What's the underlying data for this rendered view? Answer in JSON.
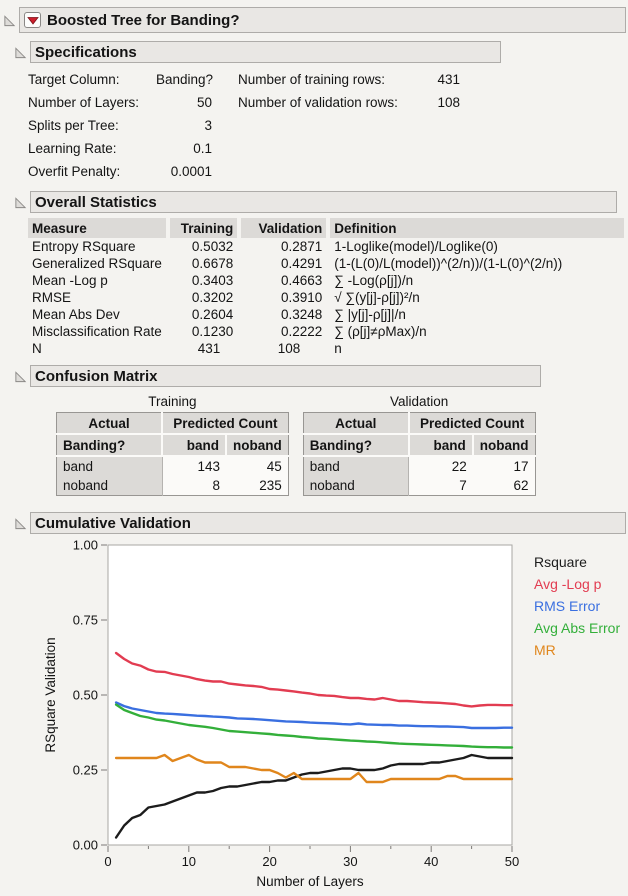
{
  "window": {
    "title": "Boosted Tree for Banding?"
  },
  "specifications": {
    "title": "Specifications",
    "left_rows": [
      {
        "label": "Target Column:",
        "value": "Banding?"
      },
      {
        "label": "Number of Layers:",
        "value": "50"
      },
      {
        "label": "Splits per Tree:",
        "value": "3"
      },
      {
        "label": "Learning Rate:",
        "value": "0.1"
      },
      {
        "label": "Overfit Penalty:",
        "value": "0.0001"
      }
    ],
    "right_rows": [
      {
        "label": "Number of training rows:",
        "value": "431"
      },
      {
        "label": "Number of validation rows:",
        "value": "108"
      }
    ]
  },
  "overall_statistics": {
    "title": "Overall Statistics",
    "columns": [
      "Measure",
      "Training",
      "Validation",
      "Definition"
    ],
    "rows": [
      [
        "Entropy RSquare",
        "0.5032",
        "0.2871",
        "1-Loglike(model)/Loglike(0)"
      ],
      [
        "Generalized RSquare",
        "0.6678",
        "0.4291",
        "(1-(L(0)/L(model))^(2/n))/(1-L(0)^(2/n))"
      ],
      [
        "Mean -Log p",
        "0.3403",
        "0.4663",
        "∑ -Log(ρ[j])/n"
      ],
      [
        "RMSE",
        "0.3202",
        "0.3910",
        "√ ∑(y[j]-ρ[j])²/n"
      ],
      [
        "Mean Abs Dev",
        "0.2604",
        "0.3248",
        "∑ |y[j]-ρ[j]|/n"
      ],
      [
        "Misclassification Rate",
        "0.1230",
        "0.2222",
        "∑ (ρ[j]≠ρMax)/n"
      ],
      [
        "N",
        "431",
        "108",
        "n"
      ]
    ]
  },
  "confusion_matrix": {
    "title": "Confusion Matrix",
    "tables": [
      {
        "caption": "Training",
        "actual_header": "Actual",
        "predicted_header": "Predicted Count",
        "row_header": "Banding?",
        "col_labels": [
          "band",
          "noband"
        ],
        "rows": [
          {
            "label": "band",
            "values": [
              "143",
              "45"
            ]
          },
          {
            "label": "noband",
            "values": [
              "8",
              "235"
            ]
          }
        ]
      },
      {
        "caption": "Validation",
        "actual_header": "Actual",
        "predicted_header": "Predicted Count",
        "row_header": "Banding?",
        "col_labels": [
          "band",
          "noband"
        ],
        "rows": [
          {
            "label": "band",
            "values": [
              "22",
              "17"
            ]
          },
          {
            "label": "noband",
            "values": [
              "7",
              "62"
            ]
          }
        ]
      }
    ]
  },
  "cumulative_validation": {
    "title": "Cumulative Validation"
  },
  "chart_data": {
    "type": "line",
    "title": "Cumulative Validation",
    "xlabel": "Number of Layers",
    "ylabel": "RSquare Validation",
    "xlim": [
      0,
      50
    ],
    "ylim": [
      0,
      1
    ],
    "xticks": [
      0,
      10,
      20,
      30,
      40,
      50
    ],
    "xticks_minor": [
      5,
      15,
      25,
      35,
      45
    ],
    "yticks": [
      0,
      0.25,
      0.5,
      0.75,
      1
    ],
    "ytick_labels": [
      "0.00",
      "0.25",
      "0.50",
      "0.75",
      "1.00"
    ],
    "grid": false,
    "legend_position": "right",
    "x": [
      1,
      2,
      3,
      4,
      5,
      6,
      7,
      8,
      9,
      10,
      11,
      12,
      13,
      14,
      15,
      16,
      17,
      18,
      19,
      20,
      21,
      22,
      23,
      24,
      25,
      26,
      27,
      28,
      29,
      30,
      31,
      32,
      33,
      34,
      35,
      36,
      37,
      38,
      39,
      40,
      41,
      42,
      43,
      44,
      45,
      46,
      47,
      48,
      49,
      50
    ],
    "series": [
      {
        "name": "Rsquare",
        "color": "#1c1c1c",
        "values": [
          0.025,
          0.065,
          0.09,
          0.1,
          0.125,
          0.13,
          0.135,
          0.145,
          0.155,
          0.165,
          0.175,
          0.175,
          0.18,
          0.19,
          0.195,
          0.195,
          0.2,
          0.205,
          0.21,
          0.21,
          0.215,
          0.215,
          0.225,
          0.235,
          0.24,
          0.24,
          0.245,
          0.25,
          0.255,
          0.255,
          0.25,
          0.25,
          0.25,
          0.255,
          0.265,
          0.27,
          0.27,
          0.27,
          0.27,
          0.275,
          0.275,
          0.28,
          0.285,
          0.29,
          0.3,
          0.295,
          0.29,
          0.29,
          0.29,
          0.29
        ]
      },
      {
        "name": "Avg -Log p",
        "color": "#e23c51",
        "values": [
          0.64,
          0.62,
          0.605,
          0.598,
          0.585,
          0.578,
          0.577,
          0.57,
          0.565,
          0.56,
          0.553,
          0.548,
          0.545,
          0.545,
          0.538,
          0.535,
          0.532,
          0.53,
          0.527,
          0.52,
          0.518,
          0.515,
          0.512,
          0.508,
          0.505,
          0.5,
          0.498,
          0.497,
          0.493,
          0.49,
          0.49,
          0.487,
          0.485,
          0.49,
          0.485,
          0.48,
          0.48,
          0.478,
          0.476,
          0.475,
          0.474,
          0.472,
          0.47,
          0.465,
          0.462,
          0.465,
          0.467,
          0.467,
          0.466,
          0.466
        ]
      },
      {
        "name": "RMS Error",
        "color": "#3a6fe0",
        "values": [
          0.475,
          0.463,
          0.455,
          0.45,
          0.445,
          0.44,
          0.438,
          0.437,
          0.435,
          0.433,
          0.431,
          0.43,
          0.428,
          0.427,
          0.425,
          0.422,
          0.421,
          0.42,
          0.418,
          0.416,
          0.414,
          0.412,
          0.411,
          0.41,
          0.408,
          0.407,
          0.406,
          0.405,
          0.403,
          0.402,
          0.405,
          0.402,
          0.401,
          0.4,
          0.4,
          0.398,
          0.398,
          0.397,
          0.396,
          0.396,
          0.395,
          0.395,
          0.394,
          0.393,
          0.39,
          0.39,
          0.39,
          0.39,
          0.391,
          0.391
        ]
      },
      {
        "name": "Avg Abs Error",
        "color": "#33af3a",
        "values": [
          0.468,
          0.45,
          0.44,
          0.43,
          0.425,
          0.418,
          0.415,
          0.41,
          0.405,
          0.4,
          0.397,
          0.394,
          0.39,
          0.385,
          0.38,
          0.378,
          0.376,
          0.374,
          0.372,
          0.37,
          0.367,
          0.365,
          0.363,
          0.36,
          0.358,
          0.355,
          0.354,
          0.352,
          0.35,
          0.348,
          0.347,
          0.345,
          0.344,
          0.342,
          0.34,
          0.338,
          0.337,
          0.336,
          0.335,
          0.334,
          0.333,
          0.332,
          0.331,
          0.33,
          0.328,
          0.327,
          0.326,
          0.326,
          0.325,
          0.325
        ]
      },
      {
        "name": "MR",
        "color": "#e0861c",
        "values": [
          0.29,
          0.29,
          0.29,
          0.29,
          0.29,
          0.29,
          0.3,
          0.28,
          0.29,
          0.3,
          0.285,
          0.275,
          0.275,
          0.275,
          0.26,
          0.26,
          0.26,
          0.255,
          0.25,
          0.25,
          0.24,
          0.225,
          0.24,
          0.22,
          0.22,
          0.22,
          0.22,
          0.22,
          0.22,
          0.22,
          0.24,
          0.21,
          0.21,
          0.21,
          0.22,
          0.22,
          0.22,
          0.22,
          0.22,
          0.22,
          0.22,
          0.23,
          0.23,
          0.22,
          0.22,
          0.22,
          0.22,
          0.22,
          0.22,
          0.22
        ]
      }
    ]
  }
}
